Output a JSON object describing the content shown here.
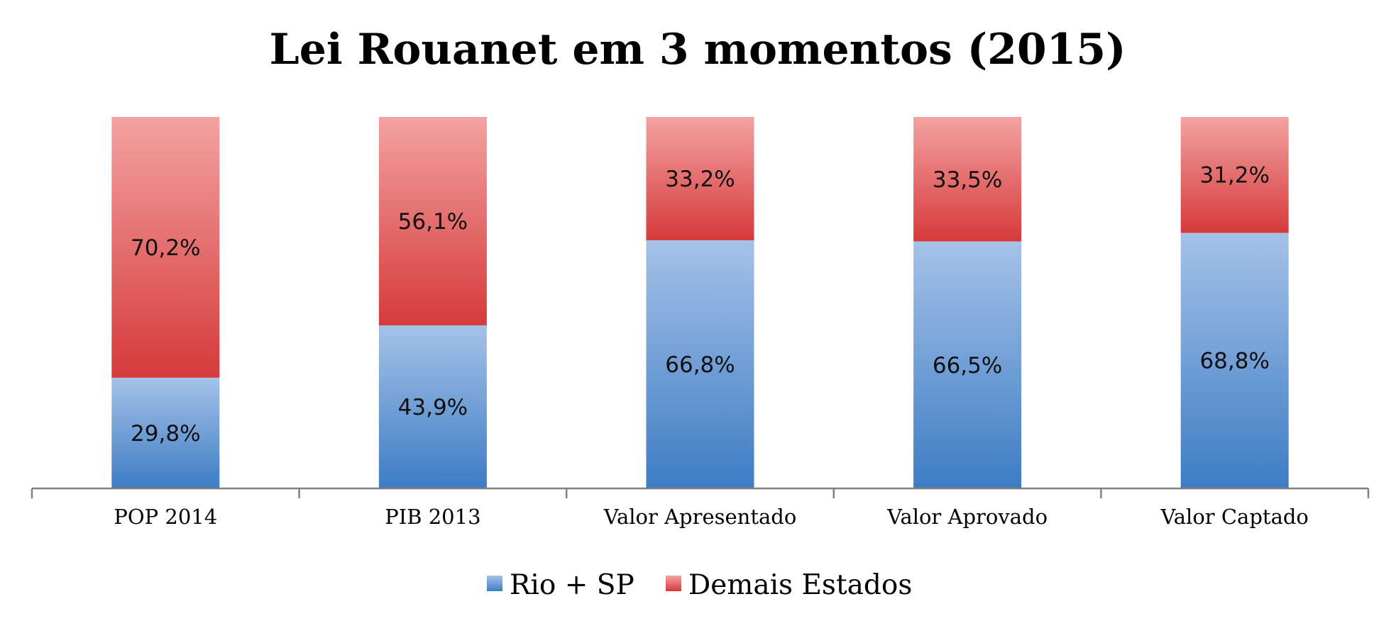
{
  "chart_data": {
    "type": "bar",
    "stacked": true,
    "title": "Lei Rouanet em 3 momentos (2015)",
    "categories": [
      "POP 2014",
      "PIB 2013",
      "Valor Apresentado",
      "Valor Aprovado",
      "Valor Captado"
    ],
    "series": [
      {
        "name": "Rio + SP",
        "values": [
          29.8,
          43.9,
          66.8,
          66.5,
          68.8
        ],
        "labels": [
          "29,8%",
          "43,9%",
          "66,8%",
          "66,5%",
          "68,8%"
        ],
        "color_light": "#a5c2e8",
        "color_dark": "#3d7cc4"
      },
      {
        "name": "Demais Estados",
        "values": [
          70.2,
          56.1,
          33.2,
          33.5,
          31.2
        ],
        "labels": [
          "70,2%",
          "56,1%",
          "33,2%",
          "33,5%",
          "31,2%"
        ],
        "color_light": "#f3a2a2",
        "color_dark": "#d63a3a"
      }
    ],
    "ylim": [
      0,
      100
    ],
    "grid": false,
    "legend_position": "bottom"
  }
}
